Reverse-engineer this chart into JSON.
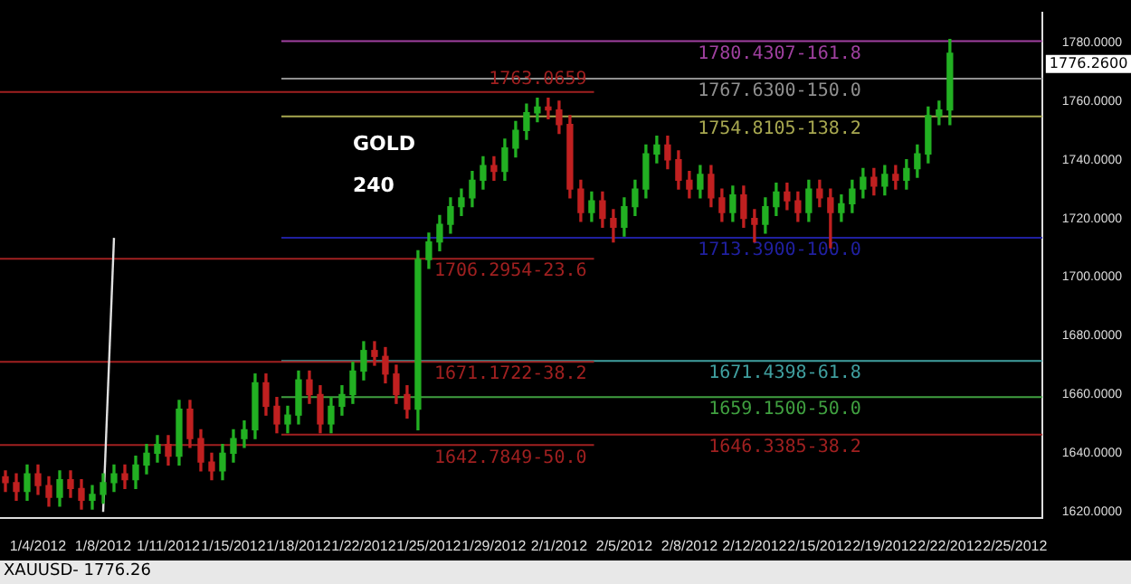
{
  "chart_data": {
    "type": "candlestick",
    "categories": [
      null,
      null,
      null,
      "1/4/2012",
      null,
      null,
      null,
      null,
      null,
      "1/8/2012",
      null,
      null,
      null,
      null,
      null,
      "1/11/2012",
      null,
      null,
      null,
      null,
      null,
      "1/15/2012",
      null,
      null,
      null,
      null,
      null,
      "1/18/2012",
      null,
      null,
      null,
      null,
      null,
      "1/22/2012",
      null,
      null,
      null,
      null,
      null,
      "1/25/2012",
      null,
      null,
      null,
      null,
      null,
      "1/29/2012",
      null,
      null,
      null,
      null,
      null,
      "2/1/2012",
      null,
      null,
      null,
      null,
      null,
      "2/5/2012",
      null,
      null,
      null,
      null,
      null,
      "2/8/2012",
      null,
      null,
      null,
      null,
      null,
      "2/12/2012",
      null,
      null,
      null,
      null,
      null,
      "2/15/2012",
      null,
      null,
      null,
      null,
      null,
      "2/19/2012",
      null,
      null,
      null,
      null,
      null,
      "2/22/2012",
      null,
      null,
      null,
      null,
      null,
      "2/25/2012",
      null,
      null
    ],
    "ohlc": [
      [
        1632,
        1634,
        1627,
        1630
      ],
      [
        1630,
        1633,
        1624,
        1627
      ],
      [
        1627,
        1636,
        1624,
        1633
      ],
      [
        1633,
        1636,
        1626,
        1629
      ],
      [
        1629,
        1632,
        1622,
        1625
      ],
      [
        1625,
        1634,
        1622,
        1631
      ],
      [
        1631,
        1634,
        1625,
        1628
      ],
      [
        1628,
        1631,
        1621,
        1624
      ],
      [
        1624,
        1629,
        1621,
        1626
      ],
      [
        1626,
        1633,
        1623,
        1630
      ],
      [
        1630,
        1636,
        1627,
        1633
      ],
      [
        1633,
        1636,
        1628,
        1631
      ],
      [
        1631,
        1639,
        1628,
        1636
      ],
      [
        1636,
        1643,
        1633,
        1640
      ],
      [
        1640,
        1646,
        1637,
        1643
      ],
      [
        1643,
        1646,
        1636,
        1639
      ],
      [
        1639,
        1658,
        1636,
        1655
      ],
      [
        1655,
        1658,
        1642,
        1645
      ],
      [
        1645,
        1648,
        1634,
        1637
      ],
      [
        1637,
        1640,
        1631,
        1634
      ],
      [
        1634,
        1643,
        1631,
        1640
      ],
      [
        1640,
        1648,
        1637,
        1645
      ],
      [
        1645,
        1651,
        1642,
        1648
      ],
      [
        1648,
        1667,
        1645,
        1664
      ],
      [
        1664,
        1667,
        1653,
        1656
      ],
      [
        1656,
        1659,
        1647,
        1650
      ],
      [
        1650,
        1656,
        1647,
        1653
      ],
      [
        1653,
        1668,
        1650,
        1665
      ],
      [
        1665,
        1668,
        1657,
        1660
      ],
      [
        1660,
        1663,
        1647,
        1650
      ],
      [
        1650,
        1659,
        1647,
        1656
      ],
      [
        1656,
        1663,
        1653,
        1660
      ],
      [
        1660,
        1671,
        1657,
        1668
      ],
      [
        1668,
        1678,
        1665,
        1675
      ],
      [
        1675,
        1678,
        1670,
        1673
      ],
      [
        1673,
        1676,
        1664,
        1667
      ],
      [
        1667,
        1670,
        1657,
        1660
      ],
      [
        1660,
        1663,
        1652,
        1655
      ],
      [
        1655,
        1709,
        1648,
        1706
      ],
      [
        1706,
        1715,
        1703,
        1712
      ],
      [
        1712,
        1721,
        1709,
        1718
      ],
      [
        1718,
        1727,
        1715,
        1724
      ],
      [
        1724,
        1730,
        1721,
        1727
      ],
      [
        1727,
        1736,
        1724,
        1733
      ],
      [
        1733,
        1741,
        1730,
        1738
      ],
      [
        1738,
        1741,
        1733,
        1736
      ],
      [
        1736,
        1747,
        1733,
        1744
      ],
      [
        1744,
        1753,
        1741,
        1750
      ],
      [
        1750,
        1759,
        1747,
        1756
      ],
      [
        1756,
        1761,
        1753,
        1758
      ],
      [
        1758,
        1761,
        1754,
        1757
      ],
      [
        1757,
        1760,
        1749,
        1752
      ],
      [
        1752,
        1755,
        1727,
        1730
      ],
      [
        1730,
        1733,
        1719,
        1722
      ],
      [
        1722,
        1729,
        1719,
        1726
      ],
      [
        1726,
        1729,
        1717,
        1720
      ],
      [
        1720,
        1723,
        1712,
        1717
      ],
      [
        1717,
        1727,
        1714,
        1724
      ],
      [
        1724,
        1733,
        1721,
        1730
      ],
      [
        1730,
        1745,
        1727,
        1742
      ],
      [
        1742,
        1748,
        1739,
        1745
      ],
      [
        1745,
        1748,
        1737,
        1740
      ],
      [
        1740,
        1743,
        1730,
        1733
      ],
      [
        1733,
        1736,
        1727,
        1730
      ],
      [
        1730,
        1738,
        1727,
        1735
      ],
      [
        1735,
        1738,
        1724,
        1727
      ],
      [
        1727,
        1730,
        1719,
        1722
      ],
      [
        1722,
        1731,
        1719,
        1728
      ],
      [
        1728,
        1731,
        1717,
        1720
      ],
      [
        1720,
        1723,
        1712,
        1718
      ],
      [
        1718,
        1727,
        1715,
        1724
      ],
      [
        1724,
        1732,
        1721,
        1729
      ],
      [
        1729,
        1732,
        1723,
        1726
      ],
      [
        1726,
        1729,
        1719,
        1722
      ],
      [
        1722,
        1733,
        1719,
        1730
      ],
      [
        1730,
        1733,
        1724,
        1727
      ],
      [
        1727,
        1730,
        1710,
        1722
      ],
      [
        1722,
        1728,
        1719,
        1725
      ],
      [
        1725,
        1733,
        1722,
        1730
      ],
      [
        1730,
        1737,
        1727,
        1734
      ],
      [
        1734,
        1737,
        1728,
        1731
      ],
      [
        1731,
        1738,
        1728,
        1735
      ],
      [
        1735,
        1738,
        1730,
        1733
      ],
      [
        1733,
        1740,
        1730,
        1737
      ],
      [
        1737,
        1745,
        1734,
        1742
      ],
      [
        1742,
        1758,
        1739,
        1755
      ],
      [
        1755,
        1760,
        1752,
        1757
      ],
      [
        1757,
        1781,
        1752,
        1776.26
      ],
      null,
      null,
      null,
      null,
      null,
      null,
      null,
      null
    ],
    "series": [
      {
        "type": "line",
        "color": "#e0e0e0",
        "values": [
          null,
          null,
          null,
          null,
          null,
          null,
          null,
          null,
          null,
          1620,
          1713.4,
          null,
          null,
          null,
          null,
          null,
          null,
          null,
          null,
          null,
          null,
          null,
          null,
          null,
          null,
          null,
          null,
          null,
          null,
          null,
          null,
          null,
          null,
          null,
          null,
          null,
          null,
          null,
          null,
          null,
          null,
          null,
          null,
          null,
          null,
          null,
          null,
          null,
          null,
          null,
          null,
          null,
          null,
          null,
          null,
          null,
          null,
          null,
          null,
          null,
          null,
          null,
          null,
          null,
          null,
          null,
          null,
          null,
          null,
          null,
          null,
          null,
          null,
          null,
          null,
          null,
          null,
          null,
          null,
          null,
          null,
          null,
          null,
          null,
          null,
          null,
          null,
          null,
          null,
          null,
          null,
          null,
          null,
          null,
          null,
          null
        ]
      }
    ],
    "ylim": [
      1618,
      1790
    ],
    "yticks": [
      {
        "value": 1620,
        "label": "1620.0000"
      },
      {
        "value": 1640,
        "label": "1640.0000"
      },
      {
        "value": 1660,
        "label": "1660.0000"
      },
      {
        "value": 1680,
        "label": "1680.0000"
      },
      {
        "value": 1700,
        "label": "1700.0000"
      },
      {
        "value": 1720,
        "label": "1720.0000"
      },
      {
        "value": 1740,
        "label": "1740.0000"
      },
      {
        "value": 1760,
        "label": "1760.0000"
      },
      {
        "value": 1780,
        "label": "1780.0000"
      }
    ],
    "ref_lines": [
      {
        "axis": "y",
        "value": 1780.4307,
        "label": "1780.4307-161.8",
        "color": "#a040a0"
      },
      {
        "axis": "y",
        "value": 1767.63,
        "label": "1767.6300-150.0",
        "color": "#909090"
      },
      {
        "axis": "y",
        "value": 1754.8105,
        "label": "1754.8105-138.2",
        "color": "#a8a850"
      },
      {
        "axis": "y",
        "value": 1713.39,
        "label": "1713.3900-100.0",
        "color": "#2020a0"
      },
      {
        "axis": "y",
        "value": 1671.4398,
        "label": "1671.4398-61.8",
        "color": "#40a0a0"
      },
      {
        "axis": "y",
        "value": 1659.15,
        "label": "1659.1500-50.0",
        "color": "#40a040"
      },
      {
        "axis": "y",
        "value": 1646.3385,
        "label": "1646.3385-38.2",
        "color": "#a02020"
      },
      {
        "axis": "y",
        "value": 1763.0659,
        "label": "1763.0659",
        "color": "#a02020"
      },
      {
        "axis": "y",
        "value": 1706.2954,
        "label": "1706.2954-23.6",
        "color": "#a02020"
      },
      {
        "axis": "y",
        "value": 1671.1722,
        "label": "1671.1722-38.2",
        "color": "#a02020"
      },
      {
        "axis": "y",
        "value": 1642.7849,
        "label": "1642.7849-50.0",
        "color": "#a02020"
      }
    ],
    "annotations": [
      "GOLD",
      "240",
      "1776.2600",
      "XAUUSD- 1776.26"
    ],
    "grid": false,
    "legend": false
  }
}
